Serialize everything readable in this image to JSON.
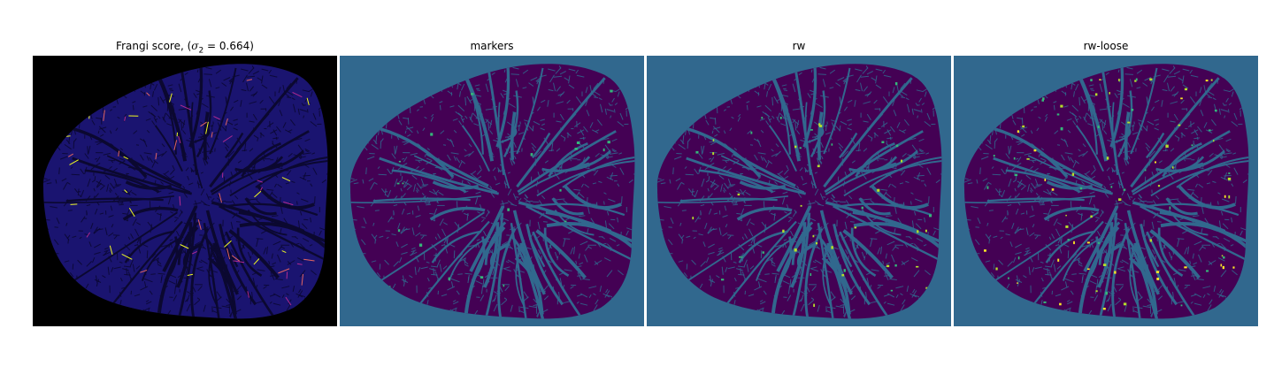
{
  "figure": {
    "panels": [
      {
        "id": "frangi",
        "title_text": "Frangi score, (",
        "title_math": "σ",
        "title_sub": "2",
        "title_tail": " = 0.664)",
        "colormap": "plasma",
        "background": "#000000",
        "tissue_fill": "#1a1470",
        "vessel": "#0b0830",
        "highlights": [
          "#f0f921",
          "#e16462",
          "#b12a90"
        ]
      },
      {
        "id": "markers",
        "title_text": "markers",
        "colormap": "viridis",
        "background": "#31688e",
        "tissue_fill": "#440154",
        "vessel": "#31688e",
        "highlights": [
          "#35b779"
        ]
      },
      {
        "id": "rw",
        "title_text": "rw",
        "colormap": "viridis",
        "background": "#31688e",
        "tissue_fill": "#440154",
        "vessel": "#31688e",
        "highlights": [
          "#b5de2b",
          "#35b779"
        ]
      },
      {
        "id": "rw-loose",
        "title_text": "rw-loose",
        "colormap": "viridis",
        "background": "#31688e",
        "tissue_fill": "#440154",
        "vessel": "#31688e",
        "highlights": [
          "#fde725",
          "#b5de2b",
          "#35b779"
        ]
      }
    ]
  }
}
